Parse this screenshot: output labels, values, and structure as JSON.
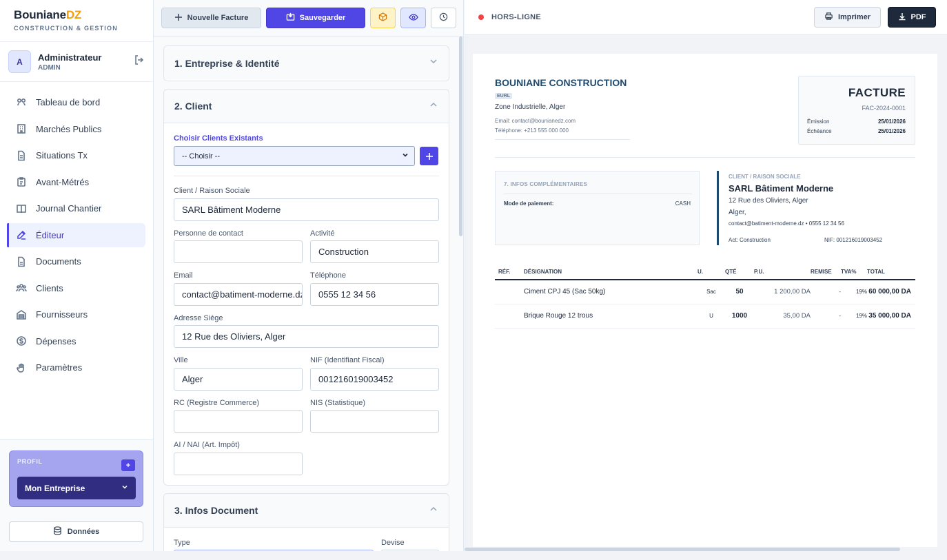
{
  "brand": {
    "name_main": "Bouniane",
    "name_accent": "DZ",
    "subtitle": "CONSTRUCTION & GESTION"
  },
  "user": {
    "initial": "A",
    "name": "Administrateur",
    "role": "ADMIN"
  },
  "nav": [
    {
      "label": "Tableau de bord",
      "icon": "dashboard-icon"
    },
    {
      "label": "Marchés Publics",
      "icon": "building-icon"
    },
    {
      "label": "Situations Tx",
      "icon": "document-icon"
    },
    {
      "label": "Avant-Métrés",
      "icon": "clipboard-icon"
    },
    {
      "label": "Journal Chantier",
      "icon": "book-icon"
    },
    {
      "label": "Éditeur",
      "icon": "edit-icon",
      "active": true
    },
    {
      "label": "Documents",
      "icon": "file-icon"
    },
    {
      "label": "Clients",
      "icon": "users-icon"
    },
    {
      "label": "Fournisseurs",
      "icon": "warehouse-icon"
    },
    {
      "label": "Dépenses",
      "icon": "dollar-icon"
    },
    {
      "label": "Paramètres",
      "icon": "hand-icon"
    }
  ],
  "profile": {
    "label": "PROFIL",
    "add": "+",
    "selected": "Mon Entreprise"
  },
  "donnees_label": "Données",
  "toolbar": {
    "new_label": "Nouvelle Facture",
    "save_label": "Sauvegarder"
  },
  "sections": {
    "s1": "1. Entreprise & Identité",
    "s2": "2. Client",
    "s3": "3. Infos Document"
  },
  "client_form": {
    "existing_label": "Choisir Clients Existants",
    "existing_value": "-- Choisir --",
    "raison_label": "Client / Raison Sociale",
    "raison_value": "SARL Bâtiment Moderne",
    "contact_label": "Personne de contact",
    "contact_value": "",
    "activite_label": "Activité",
    "activite_value": "Construction",
    "email_label": "Email",
    "email_value": "contact@batiment-moderne.dz",
    "tel_label": "Téléphone",
    "tel_value": "0555 12 34 56",
    "adresse_label": "Adresse Siège",
    "adresse_value": "12 Rue des Oliviers, Alger",
    "ville_label": "Ville",
    "ville_value": "Alger",
    "nif_label": "NIF (Identifiant Fiscal)",
    "nif_value": "001216019003452",
    "rc_label": "RC (Registre Commerce)",
    "nis_label": "NIS (Statistique)",
    "ai_label": "AI / NAI (Art. Impôt)"
  },
  "doc_form": {
    "type_label": "Type",
    "devise_label": "Devise"
  },
  "preview": {
    "status": "HORS-LIGNE",
    "print_label": "Imprimer",
    "pdf_label": "PDF",
    "company": {
      "name": "BOUNIANE CONSTRUCTION",
      "type": "EURL",
      "address": "Zone Industrielle, Alger",
      "email": "Email: contact@bounianedz.com",
      "phone": "Téléphone: +213 555 000 000"
    },
    "invoice": {
      "title": "FACTURE",
      "number": "FAC-2024-0001",
      "emission_label": "Émission",
      "emission_value": "25/01/2026",
      "echeance_label": "Échéance",
      "echeance_value": "25/01/2026"
    },
    "infos": {
      "title": "7. INFOS COMPLÉMENTAIRES",
      "payment_label": "Mode de paiement:",
      "payment_value": "CASH"
    },
    "client": {
      "caption": "CLIENT / RAISON SOCIALE",
      "name": "SARL Bâtiment Moderne",
      "address": "12 Rue des Oliviers, Alger",
      "city": "Alger,",
      "contact": "contact@batiment-moderne.dz • 0555 12 34 56",
      "activity": "Act: Construction",
      "nif": "NIF: 001216019003452"
    },
    "table": {
      "headers": [
        "RÉF.",
        "DÉSIGNATION",
        "U.",
        "QTÉ",
        "P.U.",
        "REMISE",
        "TVA%",
        "TOTAL"
      ],
      "rows": [
        [
          "",
          "Ciment CPJ 45 (Sac 50kg)",
          "Sac",
          "50",
          "1 200,00 DA",
          "-",
          "19%",
          "60 000,00 DA"
        ],
        [
          "",
          "Brique Rouge 12 trous",
          "U",
          "1000",
          "35,00 DA",
          "-",
          "19%",
          "35 000,00 DA"
        ]
      ]
    }
  }
}
